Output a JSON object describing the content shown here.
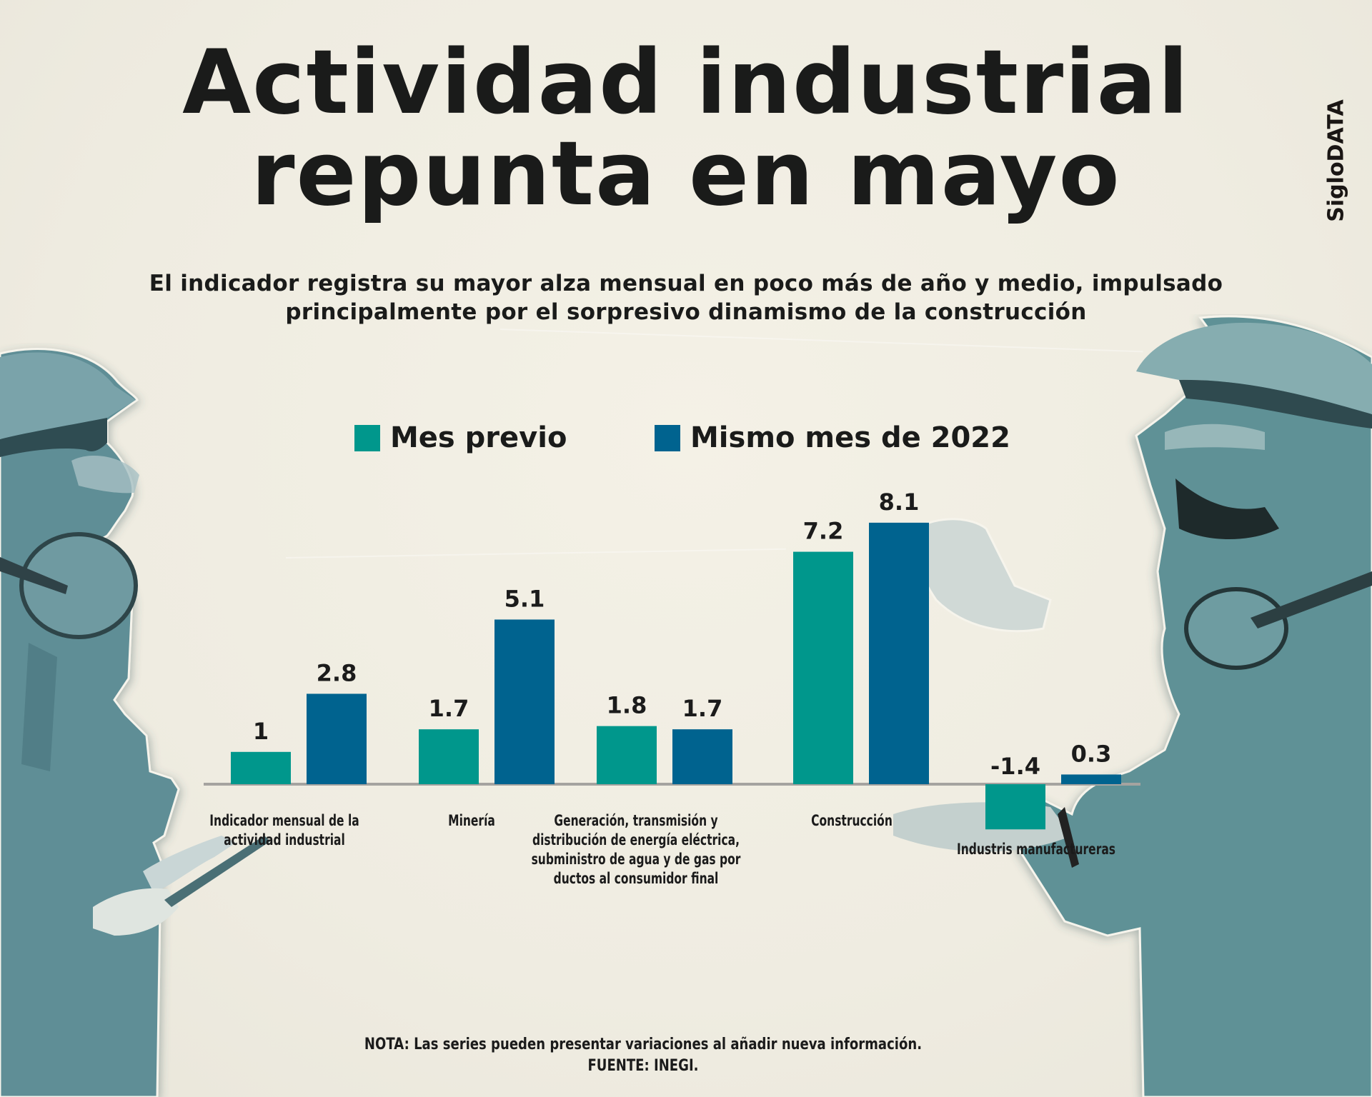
{
  "brand": "SigloDATA",
  "title_lines": [
    "Actividad industrial",
    "repunta en mayo"
  ],
  "subtitle_lines": [
    "El indicador registra su mayor alza mensual en poco más de año y medio, impulsado",
    "principalmente por el sorpresivo dinamismo de la construcción"
  ],
  "colors": {
    "series1": "#00978c",
    "series2": "#00638f",
    "baseline": "#a5a3a0",
    "figure": "#5f8f96"
  },
  "chart_data": {
    "type": "bar",
    "title": "Actividad industrial repunta en mayo",
    "xlabel": "",
    "ylabel": "",
    "ylim": [
      -1.4,
      8.1
    ],
    "grid": false,
    "legend_position": "top",
    "categories": [
      "Indicador mensual de la actividad industrial",
      "Minería",
      "Generación, transmisión y distribución de energía eléctrica, subministro de agua y de gas por ductos al consumidor final",
      "Construcción",
      "Industris manufactureras"
    ],
    "category_label_lines": [
      [
        "Indicador mensual de la",
        "actividad industrial"
      ],
      [
        "Minería"
      ],
      [
        "Generación, transmisión y",
        "distribución de energía eléctrica,",
        "subministro de agua y de gas por",
        "ductos al consumidor final"
      ],
      [
        "Construcción"
      ],
      [
        "Industris manufactureras"
      ]
    ],
    "series": [
      {
        "name": "Mes previo",
        "values": [
          1,
          1.7,
          1.8,
          7.2,
          -1.4
        ],
        "labels": [
          "1",
          "1.7",
          "1.8",
          "7.2",
          "-1.4"
        ]
      },
      {
        "name": "Mismo mes de 2022",
        "values": [
          2.8,
          5.1,
          1.7,
          8.1,
          0.3
        ],
        "labels": [
          "2.8",
          "5.1",
          "1.7",
          "8.1",
          "0.3"
        ]
      }
    ]
  },
  "footnote": {
    "note": "NOTA: Las series pueden presentar variaciones al añadir nueva información.",
    "source": "FUENTE: INEGI."
  }
}
